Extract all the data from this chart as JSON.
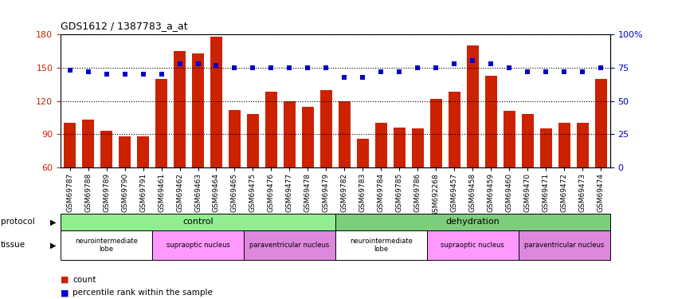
{
  "title": "GDS1612 / 1387783_a_at",
  "samples": [
    "GSM69787",
    "GSM69788",
    "GSM69789",
    "GSM69790",
    "GSM69791",
    "GSM69461",
    "GSM69462",
    "GSM69463",
    "GSM69464",
    "GSM69465",
    "GSM69475",
    "GSM69476",
    "GSM69477",
    "GSM69478",
    "GSM69479",
    "GSM69782",
    "GSM69783",
    "GSM69784",
    "GSM69785",
    "GSM69786",
    "GSM692268",
    "GSM69457",
    "GSM69458",
    "GSM69459",
    "GSM69460",
    "GSM69470",
    "GSM69471",
    "GSM69472",
    "GSM69473",
    "GSM69474"
  ],
  "bar_values": [
    100,
    103,
    93,
    88,
    88,
    140,
    165,
    163,
    178,
    112,
    108,
    128,
    120,
    115,
    130,
    120,
    86,
    100,
    96,
    95,
    122,
    128,
    170,
    143,
    111,
    108,
    95,
    100,
    100,
    140
  ],
  "percentile_values": [
    73,
    72,
    70,
    70,
    70,
    70,
    78,
    78,
    77,
    75,
    75,
    75,
    75,
    75,
    75,
    68,
    68,
    72,
    72,
    75,
    75,
    78,
    80,
    78,
    75,
    72,
    72,
    72,
    72,
    75
  ],
  "ylim_left": [
    60,
    180
  ],
  "ylim_right": [
    0,
    100
  ],
  "yticks_left": [
    60,
    90,
    120,
    150,
    180
  ],
  "yticks_right": [
    0,
    25,
    50,
    75,
    100
  ],
  "bar_color": "#cc2200",
  "square_color": "#0000cc",
  "protocol_groups": [
    {
      "label": "control",
      "start": 0,
      "end": 14,
      "color": "#90ee90"
    },
    {
      "label": "dehydration",
      "start": 15,
      "end": 29,
      "color": "#7ccd7c"
    }
  ],
  "tissue_groups": [
    {
      "label": "neurointermediate\nlobe",
      "start": 0,
      "end": 4,
      "color": "#ffffff"
    },
    {
      "label": "supraoptic nucleus",
      "start": 5,
      "end": 9,
      "color": "#ff99ff"
    },
    {
      "label": "paraventricular nucleus",
      "start": 10,
      "end": 14,
      "color": "#dd88dd"
    },
    {
      "label": "neurointermediate\nlobe",
      "start": 15,
      "end": 19,
      "color": "#ffffff"
    },
    {
      "label": "supraoptic nucleus",
      "start": 20,
      "end": 24,
      "color": "#ff99ff"
    },
    {
      "label": "paraventricular nucleus",
      "start": 25,
      "end": 29,
      "color": "#dd88dd"
    }
  ]
}
